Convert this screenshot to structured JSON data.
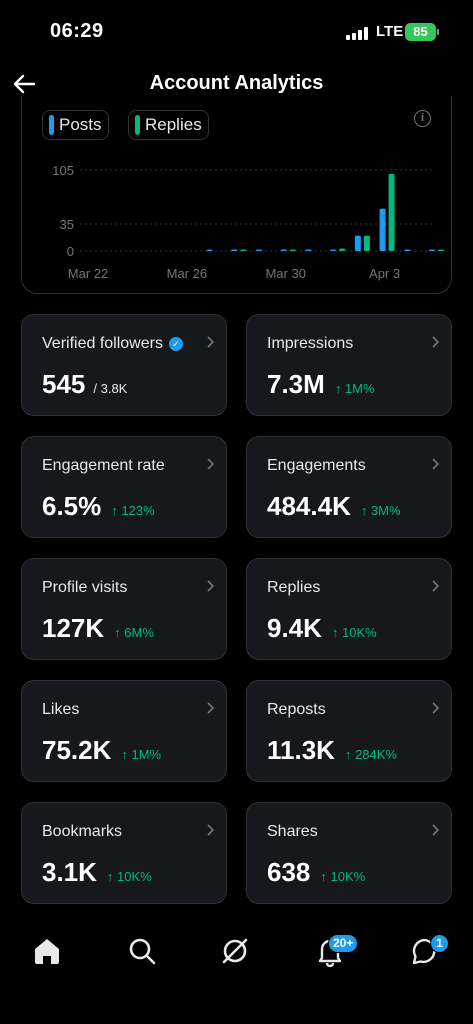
{
  "status_bar": {
    "time": "06:29",
    "network": "LTE",
    "battery": "85"
  },
  "header": {
    "title": "Account Analytics"
  },
  "legend": [
    {
      "label": "Posts",
      "color": "#1d9bf0"
    },
    {
      "label": "Replies",
      "color": "#00ba7c"
    }
  ],
  "chart_data": {
    "type": "bar",
    "y_ticks": [
      "105",
      "35",
      "0"
    ],
    "ylim": [
      0,
      105
    ],
    "x_tick_labels": [
      "Mar 22",
      "Mar 26",
      "Mar 30",
      "Apr 3"
    ],
    "categories": [
      "Mar 22",
      "Mar 23",
      "Mar 24",
      "Mar 25",
      "Mar 26",
      "Mar 27",
      "Mar 28",
      "Mar 29",
      "Mar 30",
      "Mar 31",
      "Apr 1",
      "Apr 2",
      "Apr 3",
      "Apr 4",
      "Apr 5"
    ],
    "series": [
      {
        "name": "Posts",
        "values": [
          0,
          0,
          0,
          0,
          0,
          1,
          1,
          1,
          1,
          1,
          1,
          20,
          55,
          1,
          1
        ]
      },
      {
        "name": "Replies",
        "values": [
          0,
          0,
          0,
          0,
          0,
          0,
          1,
          0,
          2,
          0,
          3,
          20,
          100,
          0,
          1
        ]
      }
    ],
    "legend_position": "top-left",
    "grid": true
  },
  "stats": [
    {
      "label": "Verified followers",
      "value": "545",
      "sub": "/ 3.8K",
      "change": "",
      "verified": true
    },
    {
      "label": "Impressions",
      "value": "7.3M",
      "change": "↑ 1M%"
    },
    {
      "label": "Engagement rate",
      "value": "6.5%",
      "change": "↑ 123%"
    },
    {
      "label": "Engagements",
      "value": "484.4K",
      "change": "↑ 3M%"
    },
    {
      "label": "Profile visits",
      "value": "127K",
      "change": "↑ 6M%"
    },
    {
      "label": "Replies",
      "value": "9.4K",
      "change": "↑ 10K%"
    },
    {
      "label": "Likes",
      "value": "75.2K",
      "change": "↑ 1M%"
    },
    {
      "label": "Reposts",
      "value": "11.3K",
      "change": "↑ 284K%"
    },
    {
      "label": "Bookmarks",
      "value": "3.1K",
      "change": "↑ 10K%"
    },
    {
      "label": "Shares",
      "value": "638",
      "change": "↑ 10K%"
    }
  ],
  "tabbar": {
    "notifications_badge": "20+",
    "messages_badge": "1"
  }
}
